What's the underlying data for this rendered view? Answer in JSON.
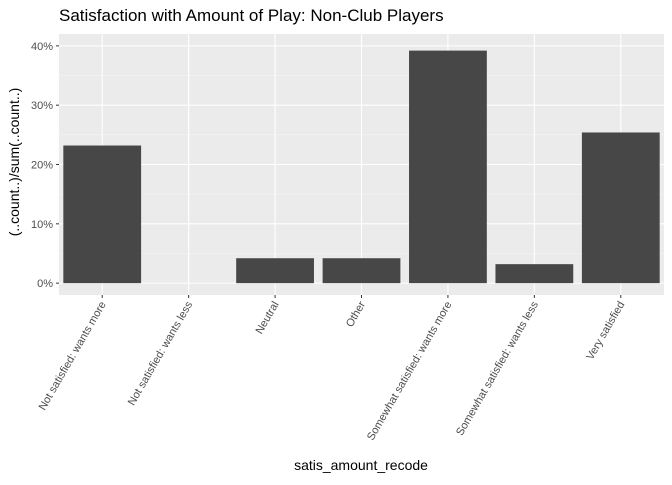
{
  "chart_data": {
    "type": "bar",
    "title": "Satisfaction with Amount of Play: Non-Club Players",
    "xlabel": "satis_amount_recode",
    "ylabel": "(..count..)/sum(..count..)",
    "categories": [
      "Not satisfied: wants more",
      "Not satisfied: wants less",
      "Neutral",
      "Other",
      "Somewhat satisfied: wants more",
      "Somewhat satisfied: wants less",
      "Very satisfied"
    ],
    "values": [
      0.232,
      0.0,
      0.042,
      0.042,
      0.392,
      0.032,
      0.254
    ],
    "ylim": [
      -0.02,
      0.42
    ],
    "yticks": [
      0,
      0.1,
      0.2,
      0.3,
      0.4
    ],
    "ytick_labels": [
      "0%",
      "10%",
      "20%",
      "30%",
      "40%"
    ],
    "grid": true,
    "legend": "none"
  },
  "colors": {
    "panel_background": "#ebebeb",
    "grid_major": "#ffffff",
    "grid_minor": "#f5f5f5",
    "bar_fill": "#474747",
    "text": "#000000",
    "tick_text": "#4d4d4d",
    "tick_mark": "#333333"
  }
}
